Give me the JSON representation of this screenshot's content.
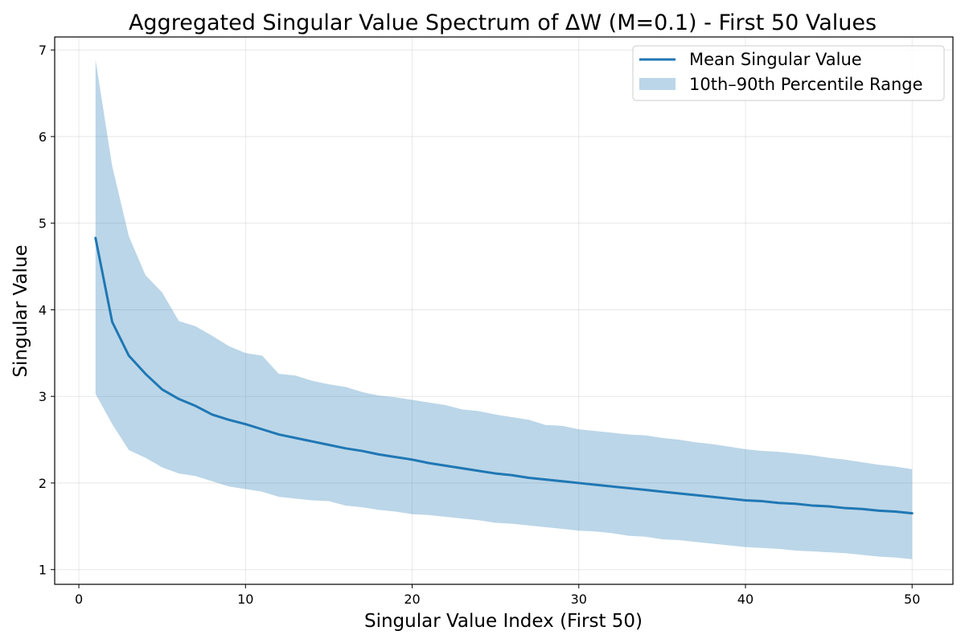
{
  "chart_data": {
    "type": "line",
    "title": "Aggregated Singular Value Spectrum of ΔW (M=0.1) - First 50 Values",
    "xlabel": "Singular Value Index (First 50)",
    "ylabel": "Singular Value",
    "xlim": [
      -1.45,
      52.45
    ],
    "ylim": [
      0.83,
      7.15
    ],
    "xticks": [
      0,
      10,
      20,
      30,
      40,
      50
    ],
    "yticks": [
      1,
      2,
      3,
      4,
      5,
      6,
      7
    ],
    "grid": true,
    "legend_position": "top-right",
    "colors": {
      "line": "#1f77b4",
      "band": "#1f77b4",
      "band_opacity": 0.3
    },
    "x": [
      1,
      2,
      3,
      4,
      5,
      6,
      7,
      8,
      9,
      10,
      11,
      12,
      13,
      14,
      15,
      16,
      17,
      18,
      19,
      20,
      21,
      22,
      23,
      24,
      25,
      26,
      27,
      28,
      29,
      30,
      31,
      32,
      33,
      34,
      35,
      36,
      37,
      38,
      39,
      40,
      41,
      42,
      43,
      44,
      45,
      46,
      47,
      48,
      49,
      50
    ],
    "series": [
      {
        "name": "Mean Singular Value",
        "kind": "line",
        "values": [
          4.83,
          3.86,
          3.47,
          3.26,
          3.08,
          2.97,
          2.89,
          2.79,
          2.73,
          2.68,
          2.62,
          2.56,
          2.52,
          2.48,
          2.44,
          2.4,
          2.37,
          2.33,
          2.3,
          2.27,
          2.23,
          2.2,
          2.17,
          2.14,
          2.11,
          2.09,
          2.06,
          2.04,
          2.02,
          2.0,
          1.98,
          1.96,
          1.94,
          1.92,
          1.9,
          1.88,
          1.86,
          1.84,
          1.82,
          1.8,
          1.79,
          1.77,
          1.76,
          1.74,
          1.73,
          1.71,
          1.7,
          1.68,
          1.67,
          1.65
        ]
      },
      {
        "name": "10th–90th Percentile Range",
        "kind": "band",
        "lower": [
          3.03,
          2.68,
          2.38,
          2.29,
          2.18,
          2.11,
          2.08,
          2.02,
          1.96,
          1.93,
          1.9,
          1.84,
          1.82,
          1.8,
          1.79,
          1.74,
          1.72,
          1.69,
          1.67,
          1.64,
          1.63,
          1.61,
          1.59,
          1.57,
          1.54,
          1.53,
          1.51,
          1.49,
          1.47,
          1.45,
          1.44,
          1.42,
          1.39,
          1.38,
          1.35,
          1.34,
          1.32,
          1.3,
          1.28,
          1.26,
          1.25,
          1.24,
          1.22,
          1.21,
          1.2,
          1.19,
          1.17,
          1.15,
          1.14,
          1.12
        ],
        "upper": [
          6.89,
          5.66,
          4.85,
          4.4,
          4.2,
          3.87,
          3.81,
          3.7,
          3.58,
          3.5,
          3.47,
          3.26,
          3.24,
          3.18,
          3.14,
          3.11,
          3.05,
          3.01,
          2.99,
          2.96,
          2.93,
          2.9,
          2.85,
          2.83,
          2.79,
          2.76,
          2.73,
          2.67,
          2.66,
          2.62,
          2.6,
          2.58,
          2.56,
          2.55,
          2.52,
          2.5,
          2.47,
          2.45,
          2.42,
          2.39,
          2.37,
          2.36,
          2.34,
          2.32,
          2.29,
          2.27,
          2.24,
          2.21,
          2.19,
          2.16
        ]
      }
    ]
  }
}
